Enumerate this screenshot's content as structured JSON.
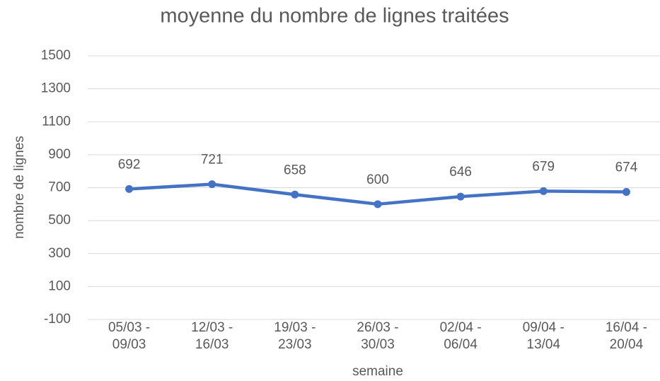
{
  "chart_data": {
    "type": "line",
    "title": "moyenne du nombre de lignes traitées",
    "x_label": "semaine",
    "y_label": "nombre de lignes",
    "categories": [
      "05/03 - 09/03",
      "12/03 - 16/03",
      "19/03 - 23/03",
      "26/03 - 30/03",
      "02/04 - 06/04",
      "09/04 - 13/04",
      "16/04 - 20/04"
    ],
    "series": [
      {
        "name": "moyenne du nombre de lignes traitées",
        "color": "#4472c4",
        "values": [
          692,
          721,
          658,
          600,
          646,
          679,
          674
        ]
      }
    ],
    "ylim": [
      -100,
      1500
    ],
    "yticks": [
      -100,
      100,
      300,
      500,
      700,
      900,
      1100,
      1300,
      1500
    ],
    "grid": true,
    "data_labels": true
  }
}
